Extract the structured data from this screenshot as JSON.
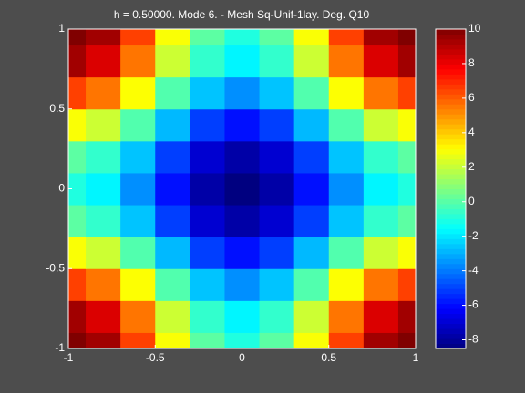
{
  "chart_data": {
    "type": "heatmap",
    "title": "h  =  0.50000.  Mode 6.  -  Mesh Sq-Unif-1lay.  Deg. Q10",
    "x": [
      -1,
      -0.8,
      -0.6,
      -0.4,
      -0.2,
      0,
      0.2,
      0.4,
      0.6,
      0.8,
      1
    ],
    "y": [
      -1,
      -0.8,
      -0.6,
      -0.4,
      -0.2,
      0,
      0.2,
      0.4,
      0.6,
      0.8,
      1
    ],
    "z": [
      [
        10.5,
        9.4,
        6.53,
        2.97,
        0.1,
        -1,
        0.1,
        2.97,
        6.53,
        9.4,
        10.5
      ],
      [
        9.4,
        8.34,
        5.56,
        2.13,
        -0.65,
        -1.72,
        -0.65,
        2.13,
        5.56,
        8.34,
        9.4
      ],
      [
        6.53,
        5.56,
        3.03,
        -0.1,
        -2.63,
        -3.59,
        -2.63,
        -0.1,
        3.03,
        5.56,
        6.53
      ],
      [
        2.97,
        2.13,
        -0.1,
        -2.84,
        -5.06,
        -5.91,
        -5.06,
        -2.84,
        -0.1,
        2.13,
        2.97
      ],
      [
        0.1,
        -0.65,
        -2.63,
        -5.06,
        -7.03,
        -7.78,
        -7.03,
        -5.06,
        -2.63,
        -0.65,
        0.1
      ],
      [
        -1,
        -1.72,
        -3.59,
        -5.91,
        -7.78,
        -8.5,
        -7.78,
        -5.91,
        -3.59,
        -1.72,
        -1
      ],
      [
        0.1,
        -0.65,
        -2.63,
        -5.06,
        -7.03,
        -7.78,
        -7.03,
        -5.06,
        -2.63,
        -0.65,
        0.1
      ],
      [
        2.97,
        2.13,
        -0.1,
        -2.84,
        -5.06,
        -5.91,
        -5.06,
        -2.84,
        -0.1,
        2.13,
        2.97
      ],
      [
        6.53,
        5.56,
        3.03,
        -0.1,
        -2.63,
        -3.59,
        -2.63,
        -0.1,
        3.03,
        5.56,
        6.53
      ],
      [
        9.4,
        8.34,
        5.56,
        2.13,
        -0.65,
        -1.72,
        -0.65,
        2.13,
        5.56,
        8.34,
        9.4
      ],
      [
        10.5,
        9.4,
        6.53,
        2.97,
        0.1,
        -1,
        0.1,
        2.97,
        6.53,
        9.4,
        10.5
      ]
    ],
    "xlim": [
      -1,
      1
    ],
    "ylim": [
      -1,
      1
    ],
    "xticks": [
      -1,
      -0.5,
      0,
      0.5,
      1
    ],
    "yticks": [
      -1,
      -0.5,
      0,
      0.5,
      1
    ],
    "clim": [
      -8.5,
      10
    ],
    "cticks": [
      -8,
      -6,
      -4,
      -2,
      0,
      2,
      4,
      6,
      8,
      10
    ],
    "colormap": "jet"
  }
}
